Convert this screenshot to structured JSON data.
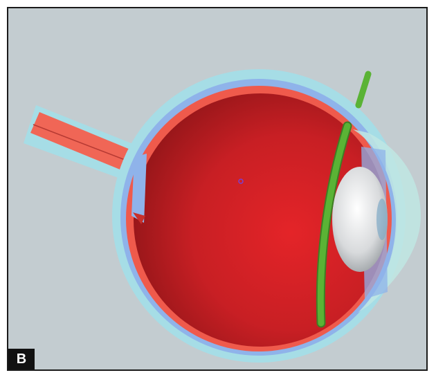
{
  "figure": {
    "panel_label": "B",
    "background_color": "#c3ccd0",
    "colors": {
      "sclera": "#a6dde6",
      "choroid": "#8fb3ea",
      "retina": "#ef5a4c",
      "vitreous": "#c81f24",
      "lens": "#e6e8ea",
      "cornea": "#bfe6e3",
      "implant": "#5ab335",
      "optic_nerve": "#f06656"
    }
  }
}
